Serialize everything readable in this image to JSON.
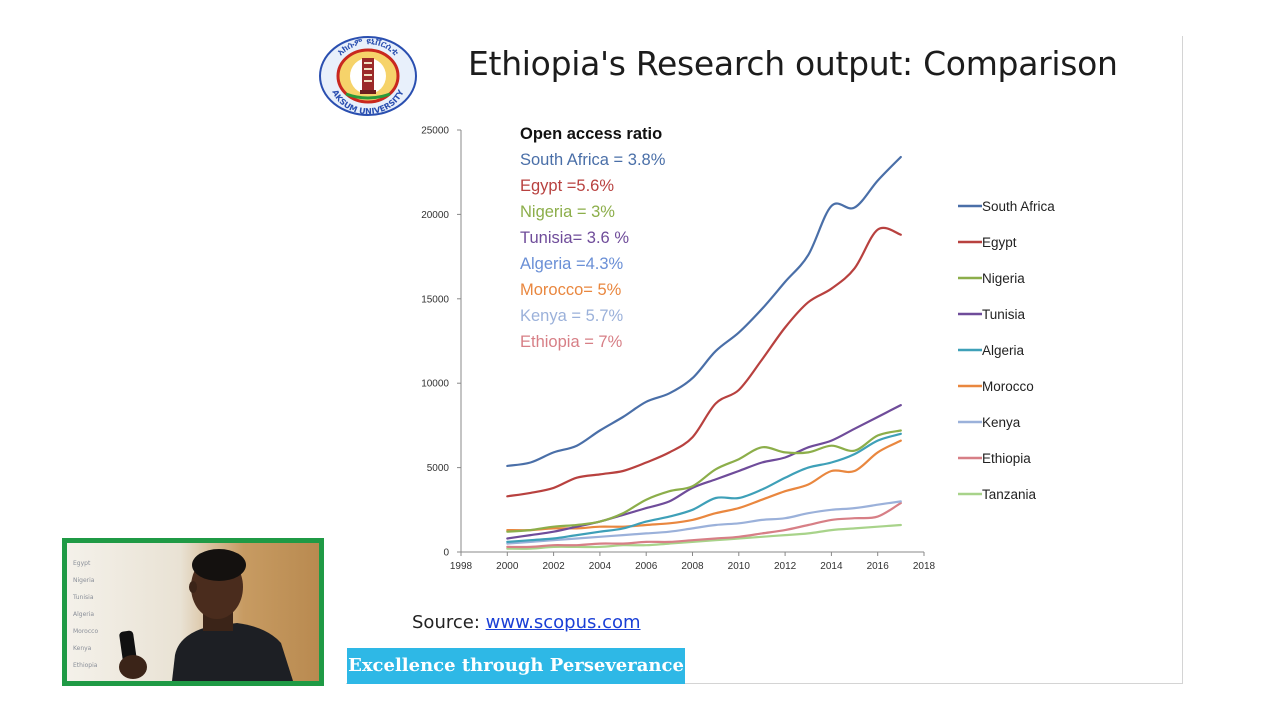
{
  "slide": {
    "title": "Ethiopia's Research output: Comparison",
    "source_label": "Source:",
    "source_link": "www.scopus.com",
    "motto": "Excellence through Perseverance !",
    "logo_text_top": "አክሱም ዩኒቨርሲቲ",
    "logo_text_bottom": "AKSUM UNIVERSITY"
  },
  "video": {
    "whiteboard_lines": [
      "Egypt",
      "Nigeria",
      "Tunisia",
      "Algeria",
      "Morocco",
      "Kenya",
      "Ethiopia"
    ]
  },
  "chart_data": {
    "type": "line",
    "x": [
      2000,
      2001,
      2002,
      2003,
      2004,
      2005,
      2006,
      2007,
      2008,
      2009,
      2010,
      2011,
      2012,
      2013,
      2014,
      2015,
      2016,
      2017
    ],
    "xlim": [
      1998,
      2018
    ],
    "ylim": [
      0,
      25000
    ],
    "xticks": [
      "1998",
      "2000",
      "2002",
      "2004",
      "2006",
      "2008",
      "2010",
      "2012",
      "2014",
      "2016",
      "2018"
    ],
    "yticks": [
      "0",
      "5000",
      "10000",
      "15000",
      "20000",
      "25000"
    ],
    "grid": false,
    "legend_position": "right",
    "series": [
      {
        "name": "South Africa",
        "color": "#4a6fa8",
        "values": [
          5100,
          5300,
          5900,
          6300,
          7200,
          8000,
          8900,
          9400,
          10300,
          11900,
          13000,
          14400,
          16000,
          17600,
          20500,
          20400,
          22000,
          23400
        ]
      },
      {
        "name": "Egypt",
        "color": "#b8413f",
        "values": [
          3300,
          3500,
          3800,
          4400,
          4600,
          4800,
          5300,
          5900,
          6800,
          8800,
          9600,
          11400,
          13300,
          14800,
          15600,
          16800,
          19100,
          18800
        ]
      },
      {
        "name": "Nigeria",
        "color": "#8cae4a",
        "values": [
          1200,
          1300,
          1500,
          1600,
          1800,
          2300,
          3100,
          3600,
          3900,
          4900,
          5500,
          6200,
          5900,
          5900,
          6300,
          6000,
          6900,
          7200
        ]
      },
      {
        "name": "Tunisia",
        "color": "#6f4c9a",
        "values": [
          800,
          1000,
          1200,
          1500,
          1800,
          2200,
          2600,
          3000,
          3800,
          4300,
          4800,
          5300,
          5600,
          6200,
          6600,
          7300,
          8000,
          8700
        ]
      },
      {
        "name": "Algeria",
        "color": "#3ea0b8",
        "values": [
          600,
          700,
          800,
          1000,
          1200,
          1400,
          1800,
          2100,
          2500,
          3200,
          3200,
          3700,
          4400,
          5000,
          5300,
          5800,
          6600,
          7000
        ]
      },
      {
        "name": "Morocco",
        "color": "#e9873f",
        "values": [
          1300,
          1300,
          1400,
          1400,
          1500,
          1500,
          1600,
          1700,
          1900,
          2300,
          2600,
          3100,
          3600,
          4000,
          4800,
          4800,
          5900,
          6600
        ]
      },
      {
        "name": "Kenya",
        "color": "#9bb1da",
        "values": [
          500,
          600,
          700,
          800,
          900,
          1000,
          1100,
          1200,
          1400,
          1600,
          1700,
          1900,
          2000,
          2300,
          2500,
          2600,
          2800,
          3000
        ]
      },
      {
        "name": "Ethiopia",
        "color": "#d77f86",
        "values": [
          300,
          300,
          400,
          400,
          500,
          500,
          600,
          600,
          700,
          800,
          900,
          1100,
          1300,
          1600,
          1900,
          2000,
          2100,
          2900
        ]
      },
      {
        "name": "Tanzania",
        "color": "#a8d38a",
        "values": [
          200,
          200,
          300,
          300,
          300,
          400,
          400,
          500,
          600,
          700,
          800,
          900,
          1000,
          1100,
          1300,
          1400,
          1500,
          1600
        ]
      }
    ],
    "annotations": {
      "heading": "Open access ratio",
      "items": [
        {
          "text": "South Africa = 3.8%",
          "color": "#4a6fa8"
        },
        {
          "text": "Egypt =5.6%",
          "color": "#b8413f"
        },
        {
          "text": "Nigeria = 3%",
          "color": "#8cae4a"
        },
        {
          "text": "Tunisia= 3.6 %",
          "color": "#6f4c9a"
        },
        {
          "text": "Algeria =4.3%",
          "color": "#6a8fd6"
        },
        {
          "text": "Morocco= 5%",
          "color": "#e9873f"
        },
        {
          "text": "Kenya = 5.7%",
          "color": "#9bb1da"
        },
        {
          "text": "Ethiopia = 7%",
          "color": "#d77f86"
        }
      ]
    }
  }
}
